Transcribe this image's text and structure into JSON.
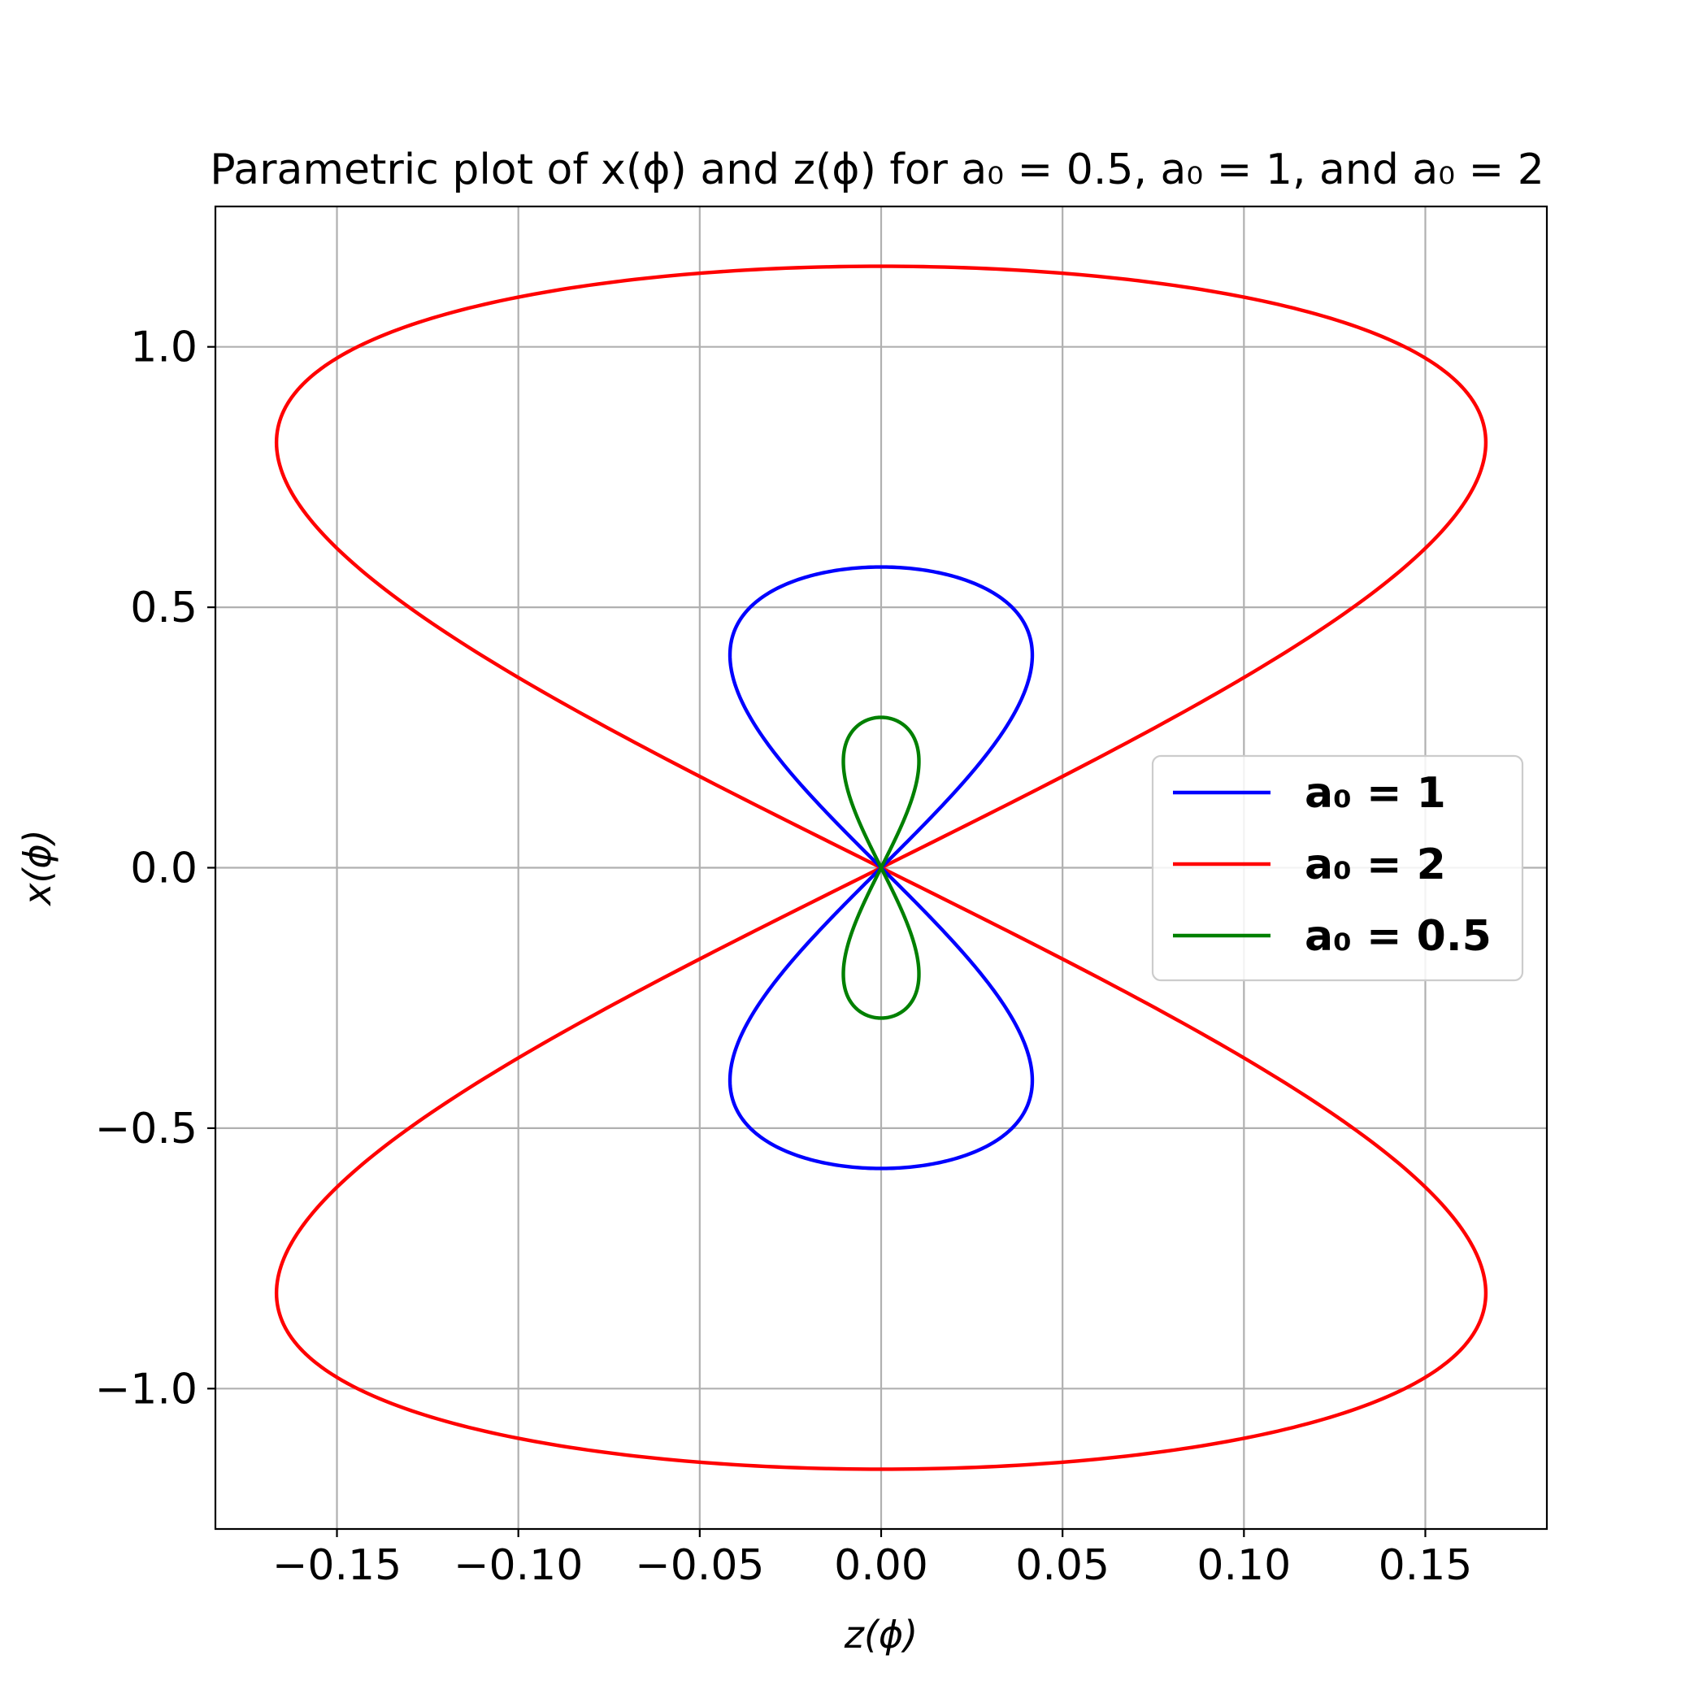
{
  "chart_data": {
    "type": "line",
    "title": "Parametric plot of x(ϕ) and z(ϕ) for a₀ = 0.5, a₀ = 1, and a₀ = 2",
    "xlabel": "z(ϕ)",
    "ylabel": "x(ϕ)",
    "xlim": [
      -0.1835,
      0.1835
    ],
    "ylim": [
      -1.2695,
      1.2695
    ],
    "xticks": [
      -0.15,
      -0.1,
      -0.05,
      0.0,
      0.05,
      0.1,
      0.15
    ],
    "xtick_labels": [
      "−0.15",
      "−0.10",
      "−0.05",
      "0.00",
      "0.05",
      "0.10",
      "0.15"
    ],
    "yticks": [
      -1.0,
      -0.5,
      0.0,
      0.5,
      1.0
    ],
    "ytick_labels": [
      "−1.0",
      "−0.5",
      "0.0",
      "0.5",
      "1.0"
    ],
    "grid": true,
    "legend_position": "center-right",
    "series": [
      {
        "name": "a₀ = 1",
        "a0": 1,
        "color": "#0000ff"
      },
      {
        "name": "a₀ = 2",
        "a0": 2,
        "color": "#ff0000"
      },
      {
        "name": "a₀ = 0.5",
        "a0": 0.5,
        "color": "#008000"
      }
    ]
  }
}
